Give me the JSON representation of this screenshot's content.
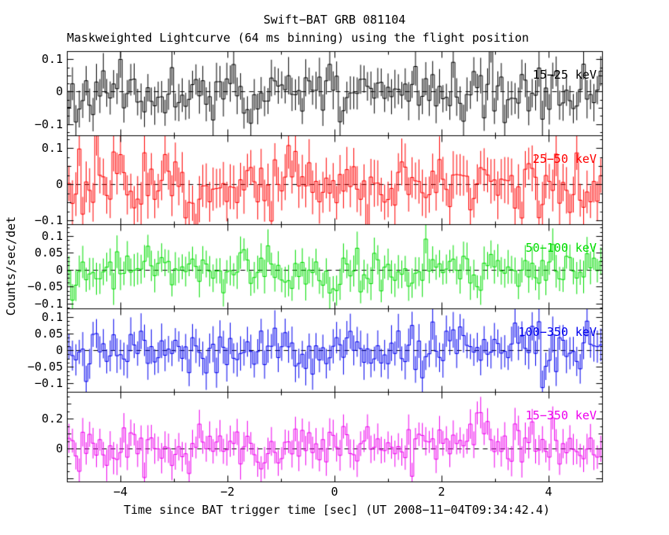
{
  "title": "Swift−BAT GRB 081104",
  "subtitle": "Maskweighted Lightcurve (64 ms binning) using the flight position",
  "axes": {
    "ylabel": "Counts/sec/det",
    "xlabel": "Time since BAT trigger time [sec] (UT 2008−11−04T09:34:42.4)"
  },
  "chart_data": {
    "type": "line",
    "subtype": "histogram-lightcurve-with-errorbars",
    "title": "Swift−BAT GRB 081104",
    "x_range": [
      -5,
      5
    ],
    "bin_seconds": 0.064,
    "n_bins": 156,
    "grid": "off",
    "legend": "none",
    "background_color": "#ffffff",
    "frame_color": "#000000",
    "zero_line": {
      "style": "dashed",
      "color": "#000000"
    },
    "x_major_ticks": [
      {
        "v": -4,
        "label": "−4"
      },
      {
        "v": -2,
        "label": "−2"
      },
      {
        "v": 0,
        "label": "0"
      },
      {
        "v": 2,
        "label": "2"
      },
      {
        "v": 4,
        "label": "4"
      }
    ],
    "x_minor_ticks": [
      -3,
      -1,
      1,
      3
    ],
    "panels": [
      {
        "label": "15−25 keV",
        "color": "#000000",
        "ylim": [
          -0.135,
          0.125
        ],
        "yticks": [
          {
            "v": 0.1,
            "label": "0.1"
          },
          {
            "v": 0,
            "label": "0"
          },
          {
            "v": -0.1,
            "label": "−0.1"
          }
        ],
        "y_minor_step": 0.025,
        "y_medium_step": 0.05,
        "y_major_step": 0.1,
        "noise_sigma": 0.042,
        "error_bar": 0.05,
        "seed": 11,
        "bump": {
          "center": 0,
          "sigma": 1,
          "amp": 0
        }
      },
      {
        "label": "25−50 keV",
        "color": "#ff0000",
        "ylim": [
          -0.11,
          0.135
        ],
        "yticks": [
          {
            "v": 0.1,
            "label": "0.1"
          },
          {
            "v": 0,
            "label": "0"
          },
          {
            "v": -0.1,
            "label": "−0.1"
          }
        ],
        "y_minor_step": 0.025,
        "y_medium_step": 0.05,
        "y_major_step": 0.1,
        "noise_sigma": 0.044,
        "error_bar": 0.055,
        "seed": 22,
        "bump": {
          "center": 0,
          "sigma": 1,
          "amp": 0
        }
      },
      {
        "label": "50−100 keV",
        "color": "#00dd00",
        "ylim": [
          -0.115,
          0.135
        ],
        "yticks": [
          {
            "v": 0.1,
            "label": "0.1"
          },
          {
            "v": 0.05,
            "label": "0.05"
          },
          {
            "v": 0,
            "label": "0"
          },
          {
            "v": -0.05,
            "label": "−0.05"
          },
          {
            "v": -0.1,
            "label": "−0.1"
          }
        ],
        "y_minor_step": 0.0125,
        "y_medium_step": 0.05,
        "y_major_step": 0.05,
        "noise_sigma": 0.033,
        "error_bar": 0.042,
        "seed": 33,
        "bump": {
          "center": 0,
          "sigma": 1,
          "amp": 0
        }
      },
      {
        "label": "100−350 keV",
        "color": "#0000ee",
        "ylim": [
          -0.125,
          0.125
        ],
        "yticks": [
          {
            "v": 0.1,
            "label": "0.1"
          },
          {
            "v": 0.05,
            "label": "0.05"
          },
          {
            "v": 0,
            "label": "0"
          },
          {
            "v": -0.05,
            "label": "−0.05"
          },
          {
            "v": -0.1,
            "label": "−0.1"
          }
        ],
        "y_minor_step": 0.0125,
        "y_medium_step": 0.05,
        "y_major_step": 0.05,
        "noise_sigma": 0.035,
        "error_bar": 0.045,
        "seed": 44,
        "bump": {
          "center": 0,
          "sigma": 1,
          "amp": 0
        }
      },
      {
        "label": "15−350 keV",
        "color": "#ee00ee",
        "ylim": [
          -0.22,
          0.38
        ],
        "yticks": [
          {
            "v": 0.2,
            "label": "0.2"
          },
          {
            "v": 0,
            "label": "0"
          }
        ],
        "y_minor_step": 0.05,
        "y_medium_step": 0.1,
        "y_major_step": 0.2,
        "noise_sigma": 0.08,
        "error_bar": 0.09,
        "seed": 55,
        "bump": {
          "center": 3.0,
          "sigma": 1.1,
          "amp": 0.07
        }
      }
    ]
  }
}
